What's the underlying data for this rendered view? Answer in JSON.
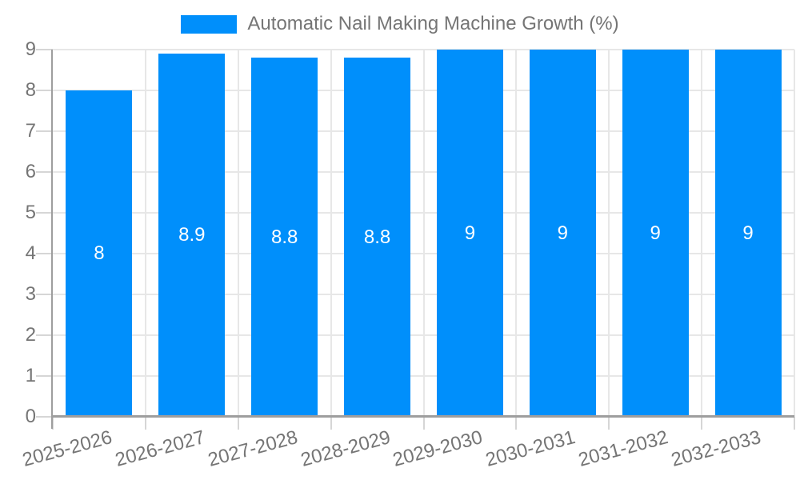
{
  "legend": {
    "title": "Automatic Nail Making Machine Growth (%)"
  },
  "colors": {
    "bar": "#008FFB",
    "value_label": "#FFFFFF",
    "grid": "#E7E7E7",
    "tick": "#D6D6D6",
    "axis": "#9E9E9E",
    "text": "#757575",
    "background": "#FFFFFF"
  },
  "chart_data": {
    "type": "bar",
    "title": "Automatic Nail Making Machine Growth (%)",
    "categories": [
      "2025-2026",
      "2026-2027",
      "2027-2028",
      "2028-2029",
      "2029-2030",
      "2030-2031",
      "2031-2032",
      "2032-2033"
    ],
    "values": [
      8,
      8.9,
      8.8,
      8.8,
      9,
      9,
      9,
      9
    ],
    "bar_labels": [
      "8",
      "8.9",
      "8.8",
      "8.8",
      "9",
      "9",
      "9",
      "9"
    ],
    "xlabel": "",
    "ylabel": "",
    "ylim": [
      0,
      9
    ],
    "yticks": [
      0,
      1,
      2,
      3,
      4,
      5,
      6,
      7,
      8,
      9
    ],
    "grid": true,
    "legend_position": "top-center",
    "x_tick_rotation_deg": -15
  }
}
